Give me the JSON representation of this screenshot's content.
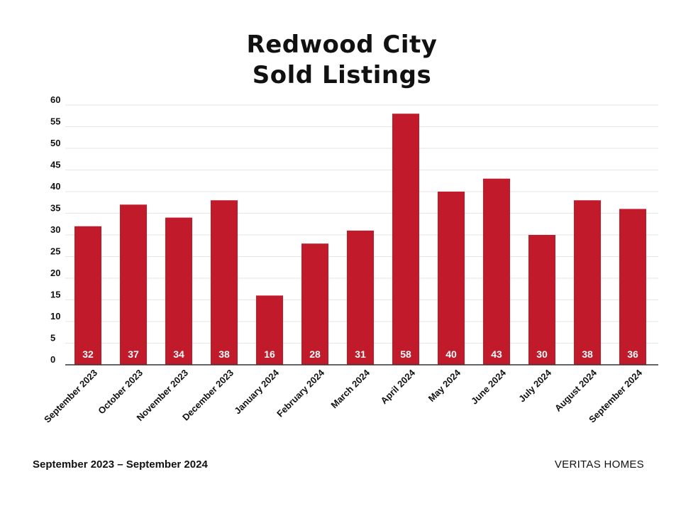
{
  "title_lines": [
    "Redwood City",
    "Sold Listings"
  ],
  "footer": {
    "date_range": "September 2023 – September 2024",
    "brand": "VERITAS HOMES"
  },
  "colors": {
    "bar": "#c11b2b",
    "grid": "#e6e6e6",
    "axis": "#333333",
    "bar_label": "#ffffff"
  },
  "chart_data": {
    "type": "bar",
    "title": "Redwood City Sold Listings",
    "categories": [
      "September 2023",
      "October 2023",
      "November 2023",
      "December 2023",
      "January 2024",
      "February 2024",
      "March 2024",
      "April 2024",
      "May 2024",
      "June 2024",
      "July 2024",
      "August 2024",
      "September 2024"
    ],
    "values": [
      32,
      37,
      34,
      38,
      16,
      28,
      31,
      58,
      40,
      43,
      30,
      38,
      36
    ],
    "ylim": [
      0,
      60
    ],
    "yticks": [
      0,
      5,
      10,
      15,
      20,
      25,
      30,
      35,
      40,
      45,
      50,
      55,
      60
    ],
    "xlabel": "",
    "ylabel": "",
    "grid": true,
    "data_labels": "inside-bottom"
  }
}
